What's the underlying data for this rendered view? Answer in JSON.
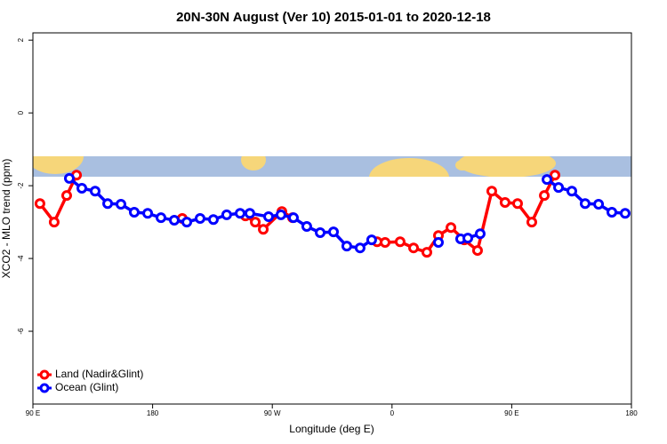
{
  "chart_data": {
    "type": "line",
    "title": "20N-30N August (Ver 10)   2015-01-01 to 2020-12-18",
    "x_label": "Longitude (deg E)",
    "y_label": "XCO2 - MLO trend (ppm)",
    "xlim": [
      -270,
      180
    ],
    "xticks": [
      {
        "value": -270,
        "label": "90 E"
      },
      {
        "value": -180,
        "label": "180"
      },
      {
        "value": -90,
        "label": "90 W"
      },
      0,
      {
        "value": 90,
        "label": "90 E"
      },
      {
        "value": 180,
        "label": "180"
      }
    ],
    "ylim": [
      -8,
      2.2
    ],
    "yticks": [
      2,
      0,
      -2,
      -4,
      -6
    ],
    "legend": "bottomleft",
    "series": [
      {
        "name": "Land (Nadir&Glint)",
        "color": "#ff0000",
        "x": [
          -264.7,
          -254.0,
          -244.6,
          -237.2,
          null,
          -157.7,
          null,
          -110.2,
          -102.8,
          -96.8,
          -82.8,
          -74.8,
          null,
          -11.2,
          -5.2,
          6.1,
          16.2,
          26.2,
          34.9,
          44.3,
          54.3,
          64.3,
          75.0,
          85.0,
          94.4,
          105.1,
          114.5,
          122.5
        ],
        "values": [
          -2.49,
          -3.0,
          -2.27,
          -1.71,
          null,
          -2.9,
          null,
          -2.83,
          -3.0,
          -3.2,
          -2.71,
          -2.88,
          null,
          -3.54,
          -3.56,
          -3.54,
          -3.71,
          -3.83,
          -3.37,
          -3.15,
          -3.49,
          -3.78,
          -2.15,
          -2.46,
          -2.49,
          -3.0,
          -2.27,
          -1.71
        ]
      },
      {
        "name": "Ocean (Glint)",
        "color": "#0000ff",
        "x": [
          -242.6,
          -233.2,
          -223.2,
          -213.8,
          -203.8,
          -193.8,
          -183.7,
          -173.7,
          -163.7,
          -154.3,
          -144.3,
          -134.3,
          -124.3,
          -114.2,
          -106.9,
          -92.8,
          -83.5,
          -74.1,
          -64.1,
          -54.0,
          -44.0,
          -34.0,
          -24.0,
          -15.3,
          null,
          34.9,
          null,
          51.6,
          57.0,
          66.3,
          null,
          116.5,
          125.2,
          135.2,
          145.2,
          155.3,
          165.3,
          175.3
        ],
        "values": [
          -1.8,
          -2.07,
          -2.15,
          -2.49,
          -2.51,
          -2.73,
          -2.76,
          -2.88,
          -2.95,
          -3.0,
          -2.9,
          -2.93,
          -2.8,
          -2.76,
          -2.76,
          -2.85,
          -2.8,
          -2.88,
          -3.12,
          -3.29,
          -3.27,
          -3.66,
          -3.71,
          -3.49,
          null,
          -3.56,
          null,
          -3.46,
          -3.44,
          -3.32,
          null,
          -1.83,
          -2.05,
          -2.15,
          -2.49,
          -2.51,
          -2.73,
          -2.76
        ]
      }
    ]
  }
}
